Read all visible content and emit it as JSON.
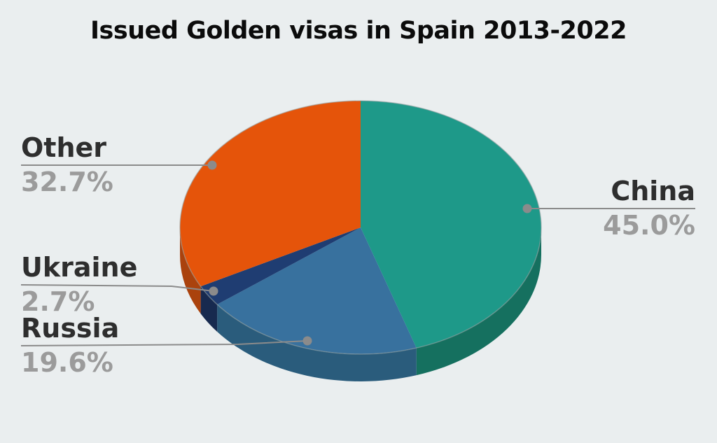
{
  "title": "Issued Golden visas in Spain 2013-2022",
  "chart_data": {
    "type": "pie",
    "style": "3d",
    "title": "Issued Golden visas in Spain 2013-2022",
    "unit": "%",
    "direction": "clockwise",
    "start_angle_deg": 0,
    "legend_position": "none",
    "labels_position": "outside-with-leader-lines",
    "total": 100.0,
    "slices": [
      {
        "label": "China",
        "value": 45.0,
        "display": "45.0%",
        "color": "#1e9989",
        "side_color": "#15705f"
      },
      {
        "label": "Russia",
        "value": 19.6,
        "display": "19.6%",
        "color": "#38719e",
        "side_color": "#2a5c7c"
      },
      {
        "label": "Ukraine",
        "value": 2.7,
        "display": "2.7%",
        "color": "#1f3d72",
        "side_color": "#172a4f"
      },
      {
        "label": "Other",
        "value": 32.7,
        "display": "32.7%",
        "color": "#e5540a",
        "side_color": "#aa420d"
      }
    ],
    "colors": {
      "background": "#eaeeef",
      "title": "#0b0b0b",
      "label_name": "#2e2e2e",
      "label_percent": "#9b9b9b",
      "leader_line": "#8b8b8b",
      "outline": "#93a0a0"
    }
  }
}
